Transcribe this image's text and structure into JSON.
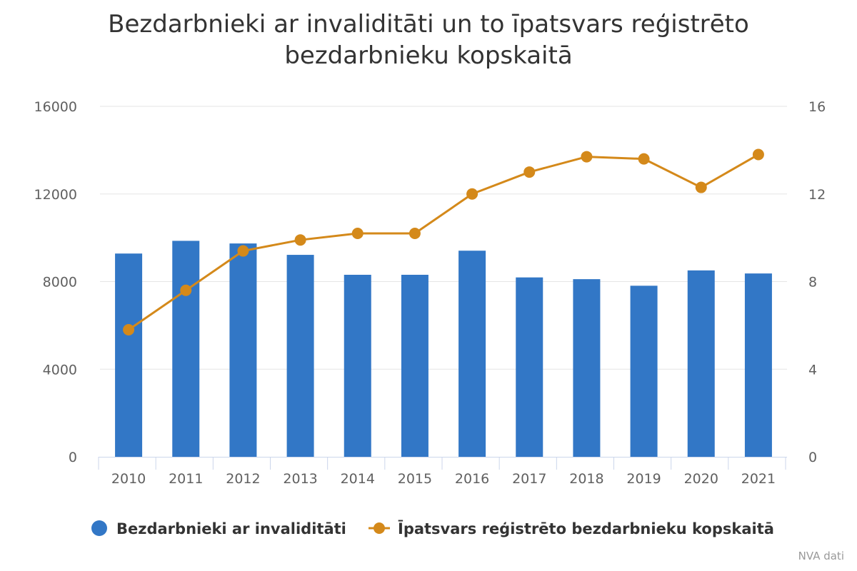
{
  "chart_data": {
    "type": "bar+line",
    "title_lines": [
      "Bezdarbnieki ar invaliditāti un to īpatsvars reģistrēto",
      "bezdarbnieku kopskaitā"
    ],
    "categories": [
      "2010",
      "2011",
      "2012",
      "2013",
      "2014",
      "2015",
      "2016",
      "2017",
      "2018",
      "2019",
      "2020",
      "2021"
    ],
    "series": [
      {
        "name": "Bezdarbnieki ar invaliditāti",
        "type": "bar",
        "axis": "left",
        "color": "#3277c6",
        "values": [
          9280,
          9860,
          9740,
          9220,
          8310,
          8310,
          9410,
          8190,
          8110,
          7810,
          8510,
          8370
        ]
      },
      {
        "name": "Īpatsvars reģistrēto bezdarbnieku kopskaitā",
        "type": "line",
        "axis": "right",
        "color": "#d4891a",
        "values": [
          5.8,
          7.6,
          9.4,
          9.9,
          10.2,
          10.2,
          12.0,
          13.0,
          13.7,
          13.6,
          12.3,
          13.8
        ]
      }
    ],
    "y_left": {
      "min": 0,
      "max": 16000,
      "ticks": [
        "0",
        "4000",
        "8000",
        "12000",
        "16000"
      ]
    },
    "y_right": {
      "min": 0,
      "max": 16,
      "ticks": [
        "0",
        "4",
        "8",
        "12",
        "16"
      ]
    },
    "grid": true,
    "legend_position": "bottom-center"
  },
  "credits": "NVA dati"
}
